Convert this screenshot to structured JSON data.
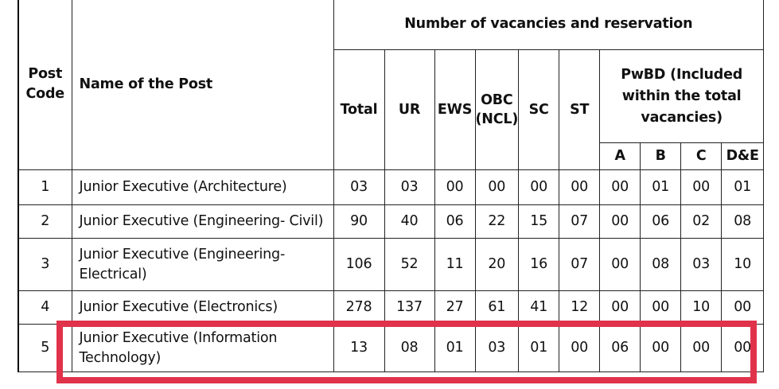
{
  "header": {
    "post_code": "Post Code",
    "name_of_post": "Name of the Post",
    "group": "Number of vacancies and reservation",
    "total": "Total",
    "ur": "UR",
    "ews": "EWS",
    "obc": "OBC (NCL)",
    "sc": "SC",
    "st": "ST",
    "pwbd": "PwBD (Included within the total vacancies)",
    "a": "A",
    "b": "B",
    "c": "C",
    "de": "D&E"
  },
  "rows": [
    {
      "code": "1",
      "name": "Junior Executive (Architecture)",
      "total": "03",
      "ur": "03",
      "ews": "00",
      "obc": "00",
      "sc": "00",
      "st": "00",
      "a": "00",
      "b": "01",
      "c": "00",
      "de": "01"
    },
    {
      "code": "2",
      "name": "Junior Executive (Engineering- Civil)",
      "total": "90",
      "ur": "40",
      "ews": "06",
      "obc": "22",
      "sc": "15",
      "st": "07",
      "a": "00",
      "b": "06",
      "c": "02",
      "de": "08"
    },
    {
      "code": "3",
      "name": "Junior Executive (Engineering- Electrical)",
      "total": "106",
      "ur": "52",
      "ews": "11",
      "obc": "20",
      "sc": "16",
      "st": "07",
      "a": "00",
      "b": "08",
      "c": "03",
      "de": "10"
    },
    {
      "code": "4",
      "name": "Junior Executive (Electronics)",
      "total": "278",
      "ur": "137",
      "ews": "27",
      "obc": "61",
      "sc": "41",
      "st": "12",
      "a": "00",
      "b": "00",
      "c": "10",
      "de": "00"
    },
    {
      "code": "5",
      "name": "Junior Executive (Information Technology)",
      "total": "13",
      "ur": "08",
      "ews": "01",
      "obc": "03",
      "sc": "01",
      "st": "00",
      "a": "06",
      "b": "00",
      "c": "00",
      "de": "00"
    }
  ],
  "highlight_color": "#e1324b"
}
